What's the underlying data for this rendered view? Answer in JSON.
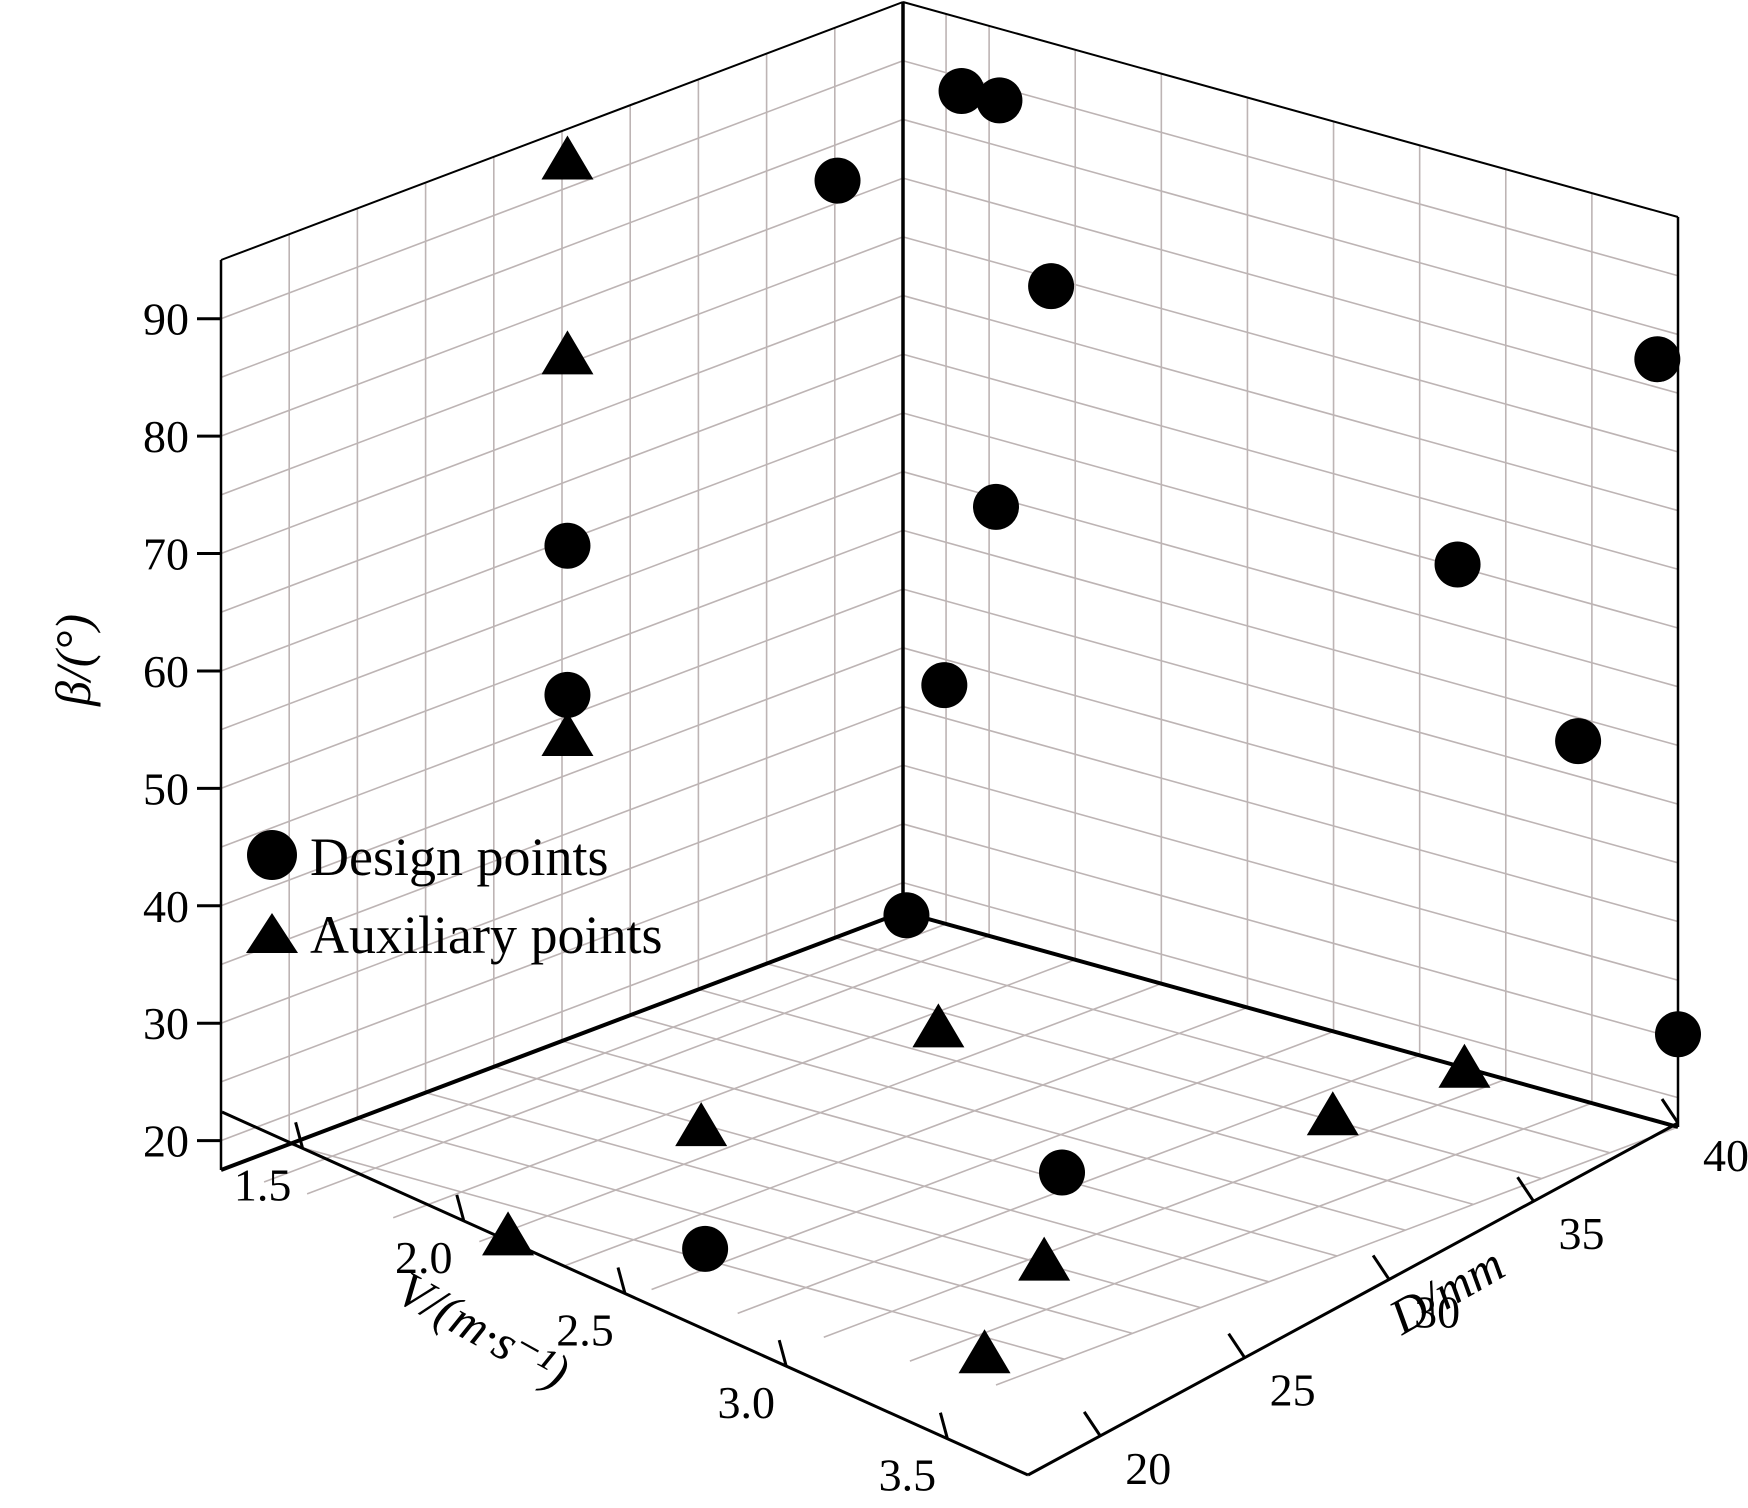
{
  "chart_data": {
    "type": "scatter",
    "subtype": "3d-scatter",
    "title": "",
    "axes": {
      "v": {
        "label": "V/(m·s⁻¹)",
        "range": [
          1.25,
          3.75
        ],
        "ticks": [
          "1.5",
          "2.0",
          "2.5",
          "3.0",
          "3.5"
        ]
      },
      "d": {
        "label": "D/mm",
        "range": [
          17.5,
          40
        ],
        "ticks": [
          "20",
          "25",
          "30",
          "35",
          "40"
        ]
      },
      "beta": {
        "label": "β/(°)",
        "range": [
          17.5,
          95
        ],
        "ticks": [
          "20",
          "30",
          "40",
          "50",
          "60",
          "70",
          "80",
          "90"
        ]
      }
    },
    "grid": true,
    "legend": {
      "position": "left",
      "entries": [
        "Design points",
        "Auxiliary points"
      ]
    },
    "series": [
      {
        "name": "Design points",
        "marker": "circle",
        "points": [
          {
            "V": 2.48,
            "D": 17.5,
            "beta": 59.5
          },
          {
            "V": 2.48,
            "D": 17.5,
            "beta": 46.8
          },
          {
            "V": 1.49,
            "D": 17.5,
            "beta": 81.9
          },
          {
            "V": 1.25,
            "D": 17.6,
            "beta": 17.3
          },
          {
            "V": 1.25,
            "D": 19.2,
            "beta": 88.8
          },
          {
            "V": 1.25,
            "D": 20.3,
            "beta": 88.9
          },
          {
            "V": 1.25,
            "D": 21.8,
            "beta": 74.3
          },
          {
            "V": 1.25,
            "D": 20.2,
            "beta": 54.2
          },
          {
            "V": 1.25,
            "D": 18.7,
            "beta": 37.8
          },
          {
            "V": 1.25,
            "D": 33.6,
            "beta": 60.2
          },
          {
            "V": 1.25,
            "D": 37.1,
            "beta": 48.0
          },
          {
            "V": 1.25,
            "D": 39.4,
            "beta": 82.4
          },
          {
            "V": 1.25,
            "D": 40.0,
            "beta": 25.4
          },
          {
            "V": 2.46,
            "D": 31.7,
            "beta": 17.5
          },
          {
            "V": 3.44,
            "D": 29.1,
            "beta": 17.5
          }
        ]
      },
      {
        "name": "Auxiliary points",
        "marker": "triangle",
        "points": [
          {
            "V": 2.48,
            "D": 17.5,
            "beta": 92.4
          },
          {
            "V": 2.48,
            "D": 17.5,
            "beta": 75.8
          },
          {
            "V": 2.48,
            "D": 17.5,
            "beta": 43.3
          },
          {
            "V": 1.25,
            "D": 33.8,
            "beta": 17.5
          },
          {
            "V": 1.72,
            "D": 33.7,
            "beta": 17.5
          },
          {
            "V": 1.84,
            "D": 23.2,
            "beta": 17.5
          },
          {
            "V": 2.76,
            "D": 23.6,
            "beta": 17.5
          },
          {
            "V": 2.98,
            "D": 35.3,
            "beta": 17.5
          },
          {
            "V": 3.67,
            "D": 25.2,
            "beta": 17.5
          },
          {
            "V": 3.59,
            "D": 38.4,
            "beta": 17.5
          }
        ]
      }
    ]
  }
}
